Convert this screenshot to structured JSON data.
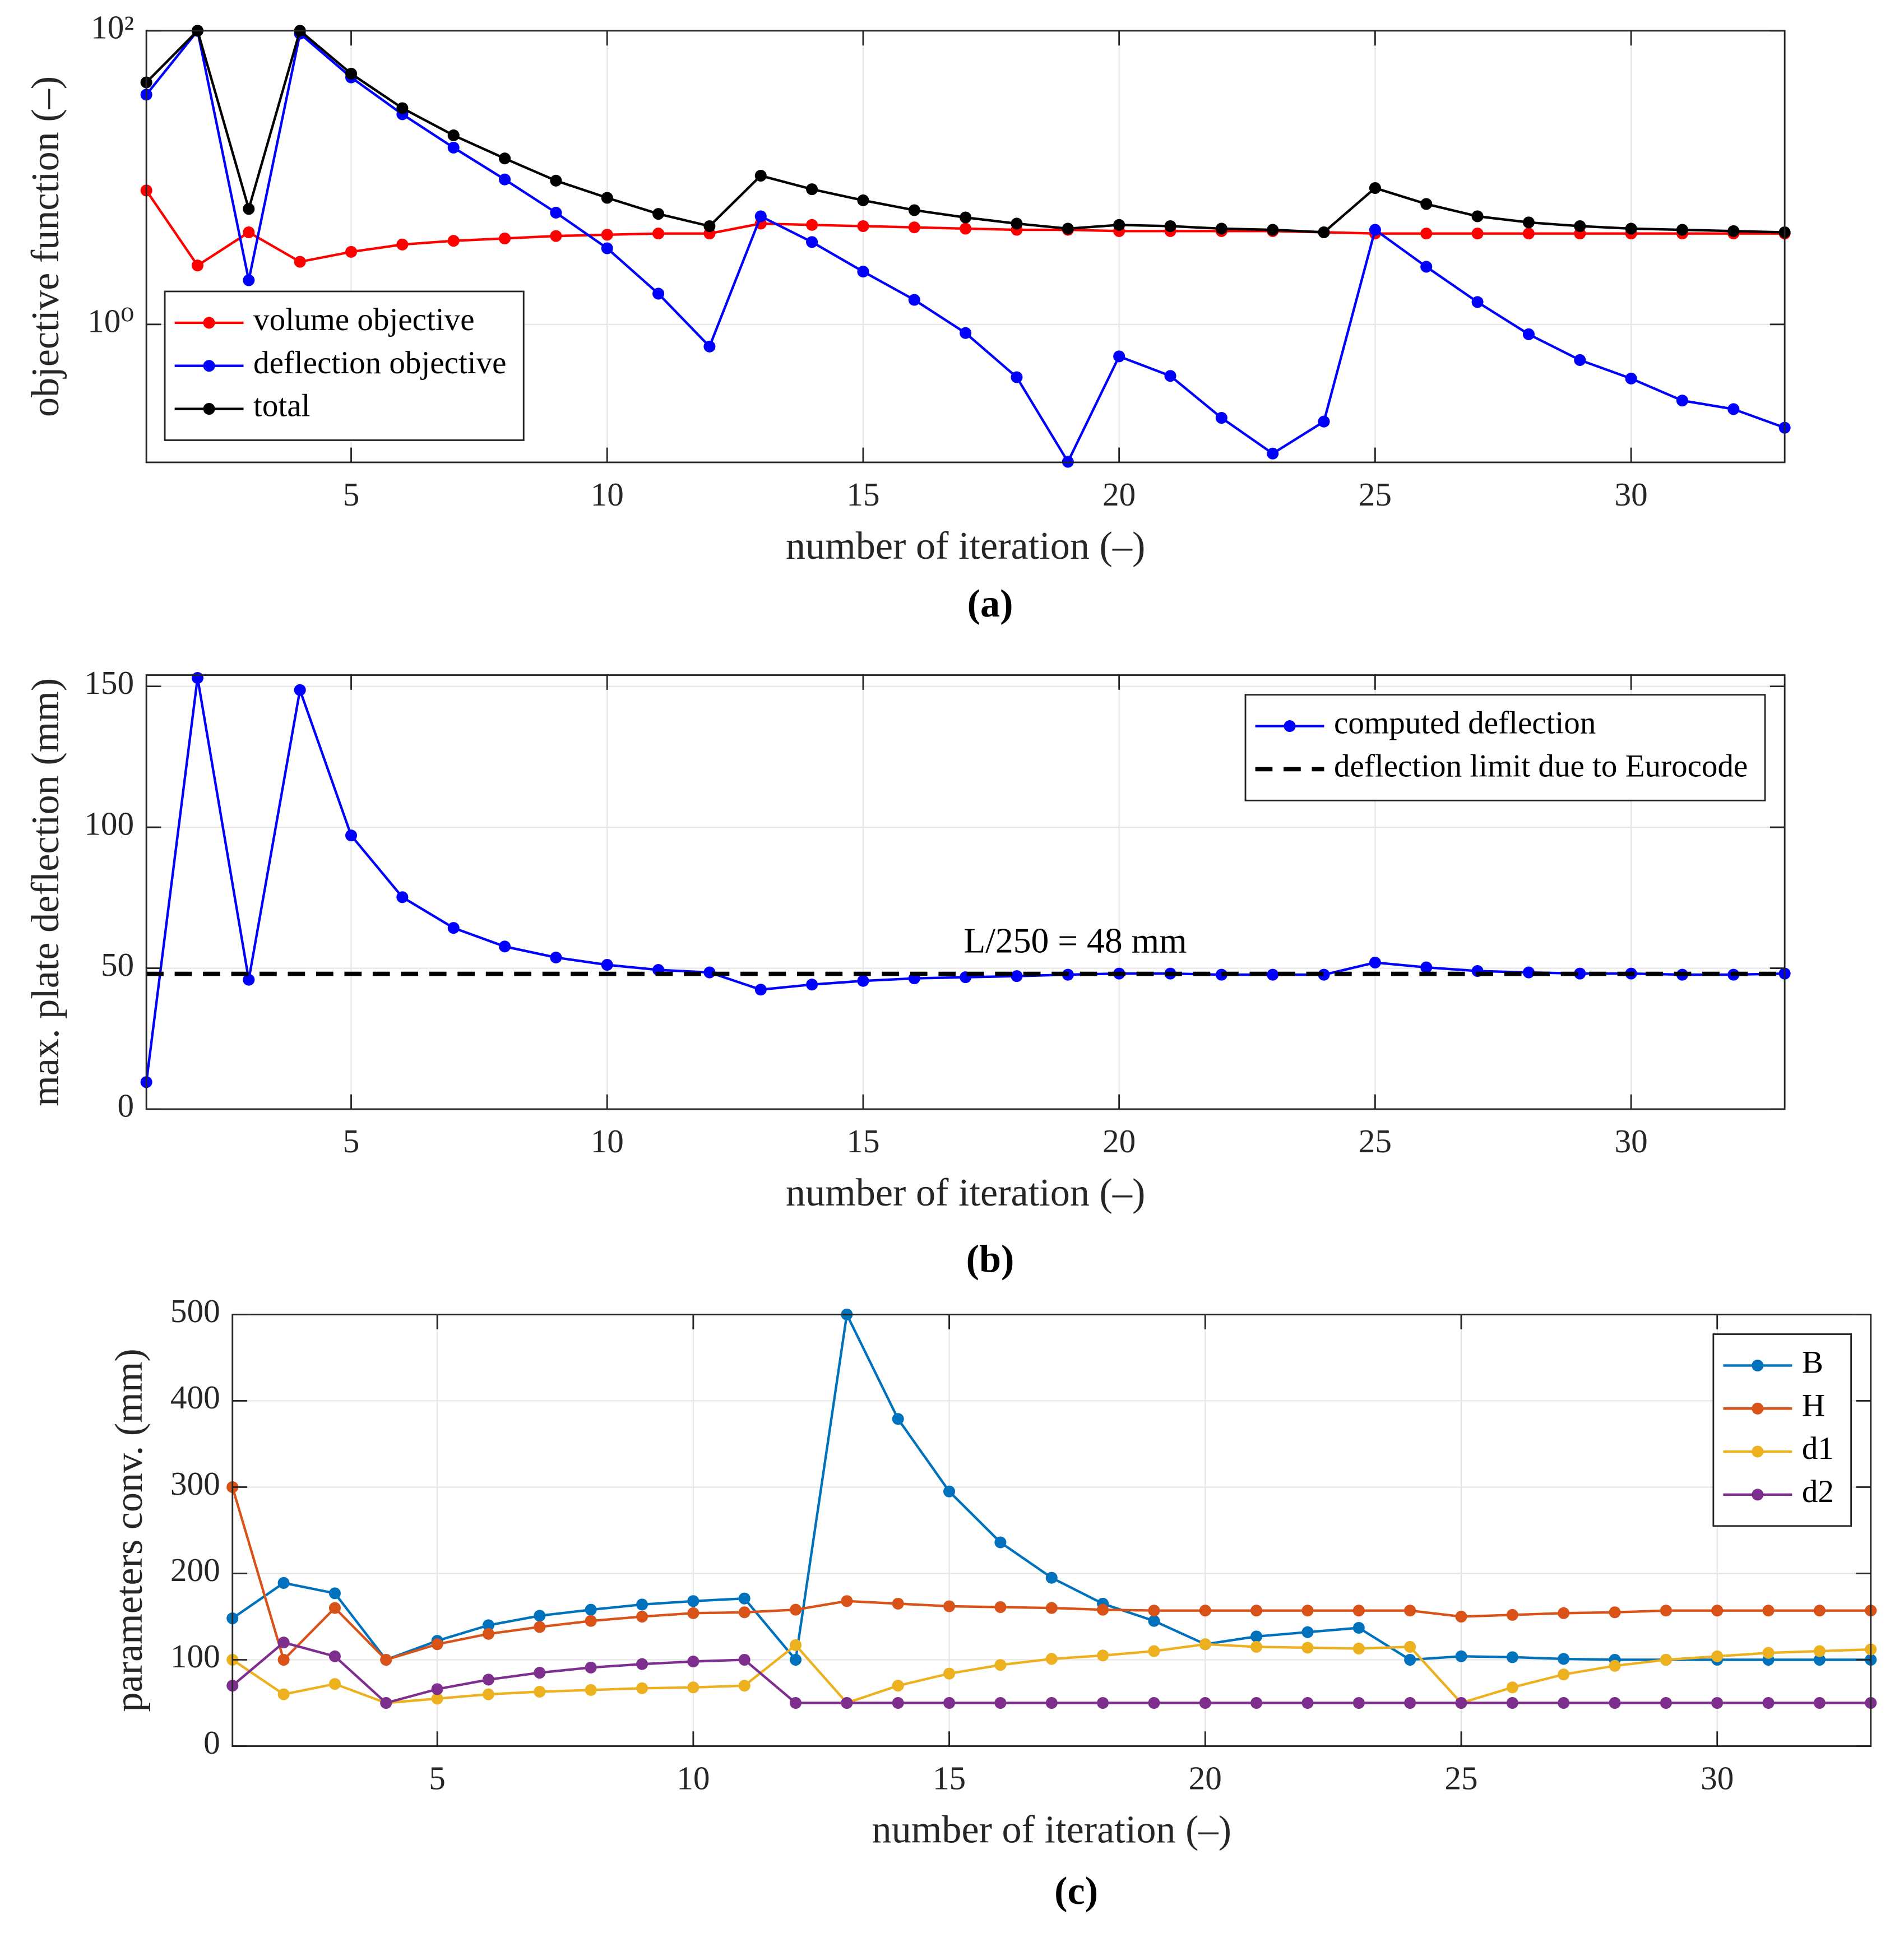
{
  "chart_data": [
    {
      "type": "line",
      "caption": "(a)",
      "xlabel": "number of iteration (–)",
      "ylabel": "objective function (–)",
      "x": [
        1,
        2,
        3,
        4,
        5,
        6,
        7,
        8,
        9,
        10,
        11,
        12,
        13,
        14,
        15,
        16,
        17,
        18,
        19,
        20,
        21,
        22,
        23,
        24,
        25,
        26,
        27,
        28,
        29,
        30,
        31,
        32,
        33
      ],
      "xlim": [
        1,
        33
      ],
      "xticks": [
        5,
        10,
        15,
        20,
        25,
        30
      ],
      "yscale": "log",
      "ylim": [
        0.115,
        100
      ],
      "yticks": [
        {
          "value": 1,
          "label": "10⁰"
        },
        {
          "value": 100,
          "label": "10²"
        }
      ],
      "grid": true,
      "legend": "lower left",
      "series": [
        {
          "name": "volume objective",
          "color": "#ff0000",
          "values": [
            8.17,
            2.52,
            4.24,
            2.67,
            3.12,
            3.5,
            3.71,
            3.85,
            4.0,
            4.08,
            4.16,
            4.16,
            4.86,
            4.76,
            4.67,
            4.58,
            4.49,
            4.41,
            4.41,
            4.32,
            4.32,
            4.32,
            4.32,
            4.24,
            4.16,
            4.16,
            4.16,
            4.16,
            4.16,
            4.16,
            4.16,
            4.16,
            4.16
          ]
        },
        {
          "name": "deflection objective",
          "color": "#0000ff",
          "values": [
            36.7,
            100,
            2.0,
            95.6,
            48.1,
            27.0,
            16.0,
            9.71,
            5.77,
            3.3,
            1.62,
            0.707,
            5.45,
            3.64,
            2.29,
            1.47,
            0.874,
            0.437,
            0.116,
            0.606,
            0.446,
            0.231,
            0.132,
            0.218,
            4.41,
            2.47,
            1.42,
            0.857,
            0.572,
            0.428,
            0.303,
            0.265,
            0.198
          ]
        },
        {
          "name": "total",
          "color": "#000000",
          "values": [
            44.5,
            100,
            6.12,
            100,
            51,
            29.7,
            19.4,
            13.5,
            9.53,
            7.28,
            5.66,
            4.67,
            10.3,
            8.33,
            7.0,
            6.0,
            5.35,
            4.86,
            4.49,
            4.76,
            4.67,
            4.49,
            4.41,
            4.24,
            8.49,
            6.61,
            5.45,
            4.95,
            4.67,
            4.49,
            4.41,
            4.32,
            4.24
          ]
        }
      ]
    },
    {
      "type": "line",
      "caption": "(b)",
      "xlabel": "number of iteration (–)",
      "ylabel": "max. plate deflection (mm)",
      "annotation": "L/250 = 48 mm",
      "x": [
        1,
        2,
        3,
        4,
        5,
        6,
        7,
        8,
        9,
        10,
        11,
        12,
        13,
        14,
        15,
        16,
        17,
        18,
        19,
        20,
        21,
        22,
        23,
        24,
        25,
        26,
        27,
        28,
        29,
        30,
        31,
        32,
        33
      ],
      "xlim": [
        1,
        33
      ],
      "xticks": [
        5,
        10,
        15,
        20,
        25,
        30
      ],
      "ylim": [
        0,
        154
      ],
      "yticks": [
        0,
        50,
        100,
        150
      ],
      "grid": true,
      "legend": "upper right",
      "series": [
        {
          "name": "computed deflection",
          "color": "#0000ff",
          "values": [
            9.6,
            153,
            45.9,
            148.7,
            97.1,
            75.2,
            64.3,
            57.7,
            53.8,
            51.2,
            49.4,
            48.5,
            42.4,
            44.2,
            45.5,
            46.4,
            46.8,
            47.2,
            47.7,
            48.1,
            48.1,
            47.7,
            47.7,
            47.7,
            52.0,
            50.3,
            49.0,
            48.5,
            48.1,
            48.1,
            47.7,
            47.7,
            48.1
          ]
        },
        {
          "name": "deflection limit due to Eurocode",
          "color": "#000000",
          "hline": 48,
          "dashed": true
        }
      ]
    },
    {
      "type": "line",
      "caption": "(c)",
      "xlabel": "number of iteration (–)",
      "ylabel": "parameters conv. (mm)",
      "x": [
        1,
        2,
        3,
        4,
        5,
        6,
        7,
        8,
        9,
        10,
        11,
        12,
        13,
        14,
        15,
        16,
        17,
        18,
        19,
        20,
        21,
        22,
        23,
        24,
        25,
        26,
        27,
        28,
        29,
        30,
        31,
        32,
        33
      ],
      "xlim": [
        1,
        33
      ],
      "xticks": [
        5,
        10,
        15,
        20,
        25,
        30
      ],
      "ylim": [
        0,
        500
      ],
      "yticks": [
        0,
        100,
        200,
        300,
        400,
        500
      ],
      "grid": true,
      "legend": "upper right",
      "series": [
        {
          "name": "B",
          "color": "#0072bd",
          "values": [
            148,
            189,
            177,
            100,
            122,
            140,
            151,
            158,
            164,
            168,
            171,
            100,
            500,
            379,
            295,
            236,
            195,
            165,
            145,
            118,
            127,
            132,
            137,
            100,
            104,
            103,
            101,
            100,
            100,
            100,
            100,
            100,
            100
          ]
        },
        {
          "name": "H",
          "color": "#d95319",
          "values": [
            300,
            100,
            160,
            100,
            118,
            130,
            138,
            145,
            150,
            154,
            155,
            158,
            168,
            165,
            162,
            161,
            160,
            158,
            157,
            157,
            157,
            157,
            157,
            157,
            150,
            152,
            154,
            155,
            157,
            157,
            157,
            157,
            157
          ]
        },
        {
          "name": "d1",
          "color": "#edb120",
          "values": [
            100,
            60,
            72,
            50,
            55,
            60,
            63,
            65,
            67,
            68,
            70,
            117,
            50,
            70,
            84,
            94,
            101,
            105,
            110,
            118,
            115,
            114,
            113,
            115,
            50,
            68,
            83,
            93,
            100,
            104,
            108,
            110,
            112
          ]
        },
        {
          "name": "d2",
          "color": "#7e2f8e",
          "values": [
            70,
            120,
            104,
            50,
            66,
            77,
            85,
            91,
            95,
            98,
            100,
            50,
            50,
            50,
            50,
            50,
            50,
            50,
            50,
            50,
            50,
            50,
            50,
            50,
            50,
            50,
            50,
            50,
            50,
            50,
            50,
            50,
            50
          ]
        }
      ]
    }
  ]
}
